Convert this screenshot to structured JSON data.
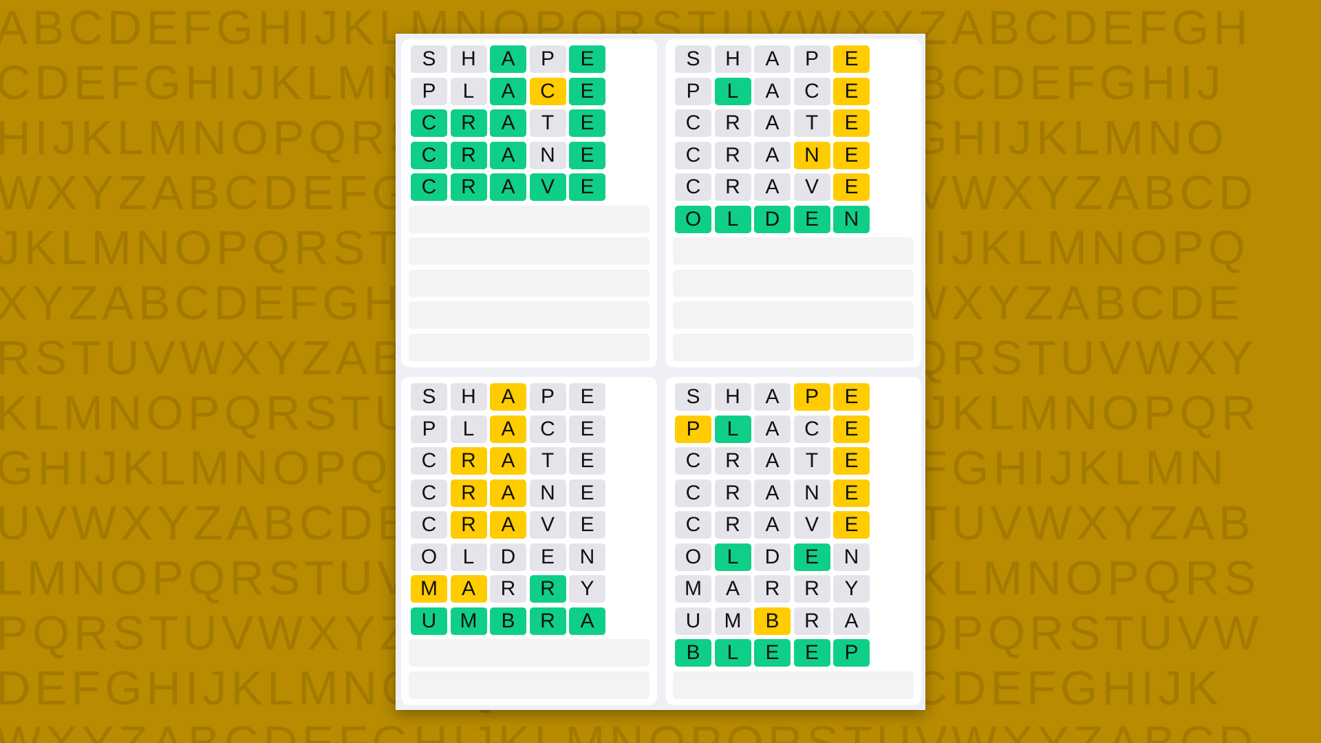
{
  "background_rows": [
    "ABCDEFGHIJKLMNOPQRSTUVWXYZABCDEFGH",
    "CDEFGHIJKLMNOPQRSTUVWXYZABCDEFGHIJ",
    "HIJKLMNOPQRSTUVWXYZABCDEFGHIJKLMNO",
    "WXYZABCDEFGHIJKLMNOPQRSTUVWXYZABCD",
    "JKLMNOPQRSTUVWXYZABCDEFGHIJKLMNOPQ",
    "XYZABCDEFGHIJKLMNOPQRSTUVWXYZABCDE",
    "RSTUVWXYZABCDEFGHIJKLMNOPQRSTUVWXY",
    "KLMNOPQRSTUVWXYZABCDEFGHIJKLMNOPQR",
    "GHIJKLMNOPQRSTUVWXYZABCDEFGHIJKLMN",
    "UVWXYZABCDEFGHIJKLMNOPQRSTUVWXYZAB",
    "LMNOPQRSTUVWXYZABCDEFGHIJKLMNOPQRS",
    "PQRSTUVWXYZABCDEFGHIJKLMNOPQRSTUVW",
    "DEFGHIJKLMNOPQRSTUVWXYZABCDEFGHIJK",
    "WXYZABCDEFGHIJKLMNOPQRSTUVWXYZABCD"
  ],
  "colors": {
    "green": "#0fcf88",
    "yellow": "#ffcc00",
    "gray": "#e4e4ea",
    "background": "#b88b00"
  },
  "total_rows": 10,
  "boards": [
    {
      "rows": [
        {
          "letters": [
            "S",
            "H",
            "A",
            "P",
            "E"
          ],
          "states": [
            "gray",
            "gray",
            "green",
            "gray",
            "green"
          ]
        },
        {
          "letters": [
            "P",
            "L",
            "A",
            "C",
            "E"
          ],
          "states": [
            "gray",
            "gray",
            "green",
            "yellow",
            "green"
          ]
        },
        {
          "letters": [
            "C",
            "R",
            "A",
            "T",
            "E"
          ],
          "states": [
            "green",
            "green",
            "green",
            "gray",
            "green"
          ]
        },
        {
          "letters": [
            "C",
            "R",
            "A",
            "N",
            "E"
          ],
          "states": [
            "green",
            "green",
            "green",
            "gray",
            "green"
          ]
        },
        {
          "letters": [
            "C",
            "R",
            "A",
            "V",
            "E"
          ],
          "states": [
            "green",
            "green",
            "green",
            "green",
            "green"
          ]
        }
      ]
    },
    {
      "rows": [
        {
          "letters": [
            "S",
            "H",
            "A",
            "P",
            "E"
          ],
          "states": [
            "gray",
            "gray",
            "gray",
            "gray",
            "yellow"
          ]
        },
        {
          "letters": [
            "P",
            "L",
            "A",
            "C",
            "E"
          ],
          "states": [
            "gray",
            "green",
            "gray",
            "gray",
            "yellow"
          ]
        },
        {
          "letters": [
            "C",
            "R",
            "A",
            "T",
            "E"
          ],
          "states": [
            "gray",
            "gray",
            "gray",
            "gray",
            "yellow"
          ]
        },
        {
          "letters": [
            "C",
            "R",
            "A",
            "N",
            "E"
          ],
          "states": [
            "gray",
            "gray",
            "gray",
            "yellow",
            "yellow"
          ]
        },
        {
          "letters": [
            "C",
            "R",
            "A",
            "V",
            "E"
          ],
          "states": [
            "gray",
            "gray",
            "gray",
            "gray",
            "yellow"
          ]
        },
        {
          "letters": [
            "O",
            "L",
            "D",
            "E",
            "N"
          ],
          "states": [
            "green",
            "green",
            "green",
            "green",
            "green"
          ]
        }
      ]
    },
    {
      "rows": [
        {
          "letters": [
            "S",
            "H",
            "A",
            "P",
            "E"
          ],
          "states": [
            "gray",
            "gray",
            "yellow",
            "gray",
            "gray"
          ]
        },
        {
          "letters": [
            "P",
            "L",
            "A",
            "C",
            "E"
          ],
          "states": [
            "gray",
            "gray",
            "yellow",
            "gray",
            "gray"
          ]
        },
        {
          "letters": [
            "C",
            "R",
            "A",
            "T",
            "E"
          ],
          "states": [
            "gray",
            "yellow",
            "yellow",
            "gray",
            "gray"
          ]
        },
        {
          "letters": [
            "C",
            "R",
            "A",
            "N",
            "E"
          ],
          "states": [
            "gray",
            "yellow",
            "yellow",
            "gray",
            "gray"
          ]
        },
        {
          "letters": [
            "C",
            "R",
            "A",
            "V",
            "E"
          ],
          "states": [
            "gray",
            "yellow",
            "yellow",
            "gray",
            "gray"
          ]
        },
        {
          "letters": [
            "O",
            "L",
            "D",
            "E",
            "N"
          ],
          "states": [
            "gray",
            "gray",
            "gray",
            "gray",
            "gray"
          ]
        },
        {
          "letters": [
            "M",
            "A",
            "R",
            "R",
            "Y"
          ],
          "states": [
            "yellow",
            "yellow",
            "gray",
            "green",
            "gray"
          ]
        },
        {
          "letters": [
            "U",
            "M",
            "B",
            "R",
            "A"
          ],
          "states": [
            "green",
            "green",
            "green",
            "green",
            "green"
          ]
        }
      ]
    },
    {
      "rows": [
        {
          "letters": [
            "S",
            "H",
            "A",
            "P",
            "E"
          ],
          "states": [
            "gray",
            "gray",
            "gray",
            "yellow",
            "yellow"
          ]
        },
        {
          "letters": [
            "P",
            "L",
            "A",
            "C",
            "E"
          ],
          "states": [
            "yellow",
            "green",
            "gray",
            "gray",
            "yellow"
          ]
        },
        {
          "letters": [
            "C",
            "R",
            "A",
            "T",
            "E"
          ],
          "states": [
            "gray",
            "gray",
            "gray",
            "gray",
            "yellow"
          ]
        },
        {
          "letters": [
            "C",
            "R",
            "A",
            "N",
            "E"
          ],
          "states": [
            "gray",
            "gray",
            "gray",
            "gray",
            "yellow"
          ]
        },
        {
          "letters": [
            "C",
            "R",
            "A",
            "V",
            "E"
          ],
          "states": [
            "gray",
            "gray",
            "gray",
            "gray",
            "yellow"
          ]
        },
        {
          "letters": [
            "O",
            "L",
            "D",
            "E",
            "N"
          ],
          "states": [
            "gray",
            "green",
            "gray",
            "green",
            "gray"
          ]
        },
        {
          "letters": [
            "M",
            "A",
            "R",
            "R",
            "Y"
          ],
          "states": [
            "gray",
            "gray",
            "gray",
            "gray",
            "gray"
          ]
        },
        {
          "letters": [
            "U",
            "M",
            "B",
            "R",
            "A"
          ],
          "states": [
            "gray",
            "gray",
            "yellow",
            "gray",
            "gray"
          ]
        },
        {
          "letters": [
            "B",
            "L",
            "E",
            "E",
            "P"
          ],
          "states": [
            "green",
            "green",
            "green",
            "green",
            "green"
          ]
        }
      ]
    }
  ]
}
